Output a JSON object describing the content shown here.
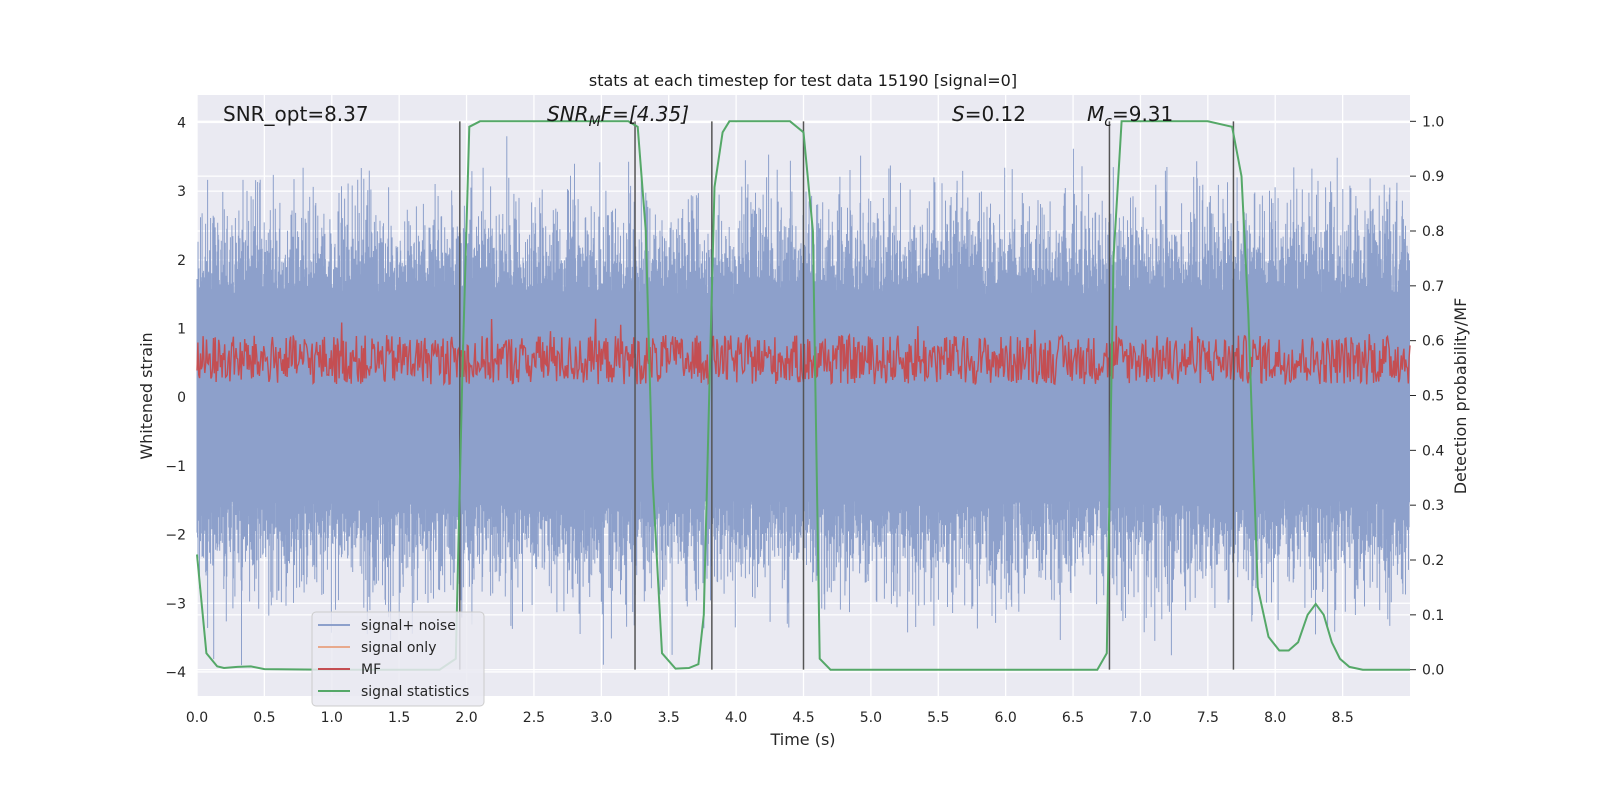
{
  "chart_data": {
    "type": "line",
    "title": "stats at each timestep for test data 15190 [signal=0]",
    "xlabel": "Time (s)",
    "ylabel_left": "Whitened strain",
    "ylabel_right": "Detection probability/MF",
    "xlim": [
      0.0,
      9.0
    ],
    "ylim_left": [
      -4.35,
      4.4
    ],
    "ylim_right": [
      -0.048,
      1.048
    ],
    "x_ticks": [
      "0.0",
      "0.5",
      "1.0",
      "1.5",
      "2.0",
      "2.5",
      "3.0",
      "3.5",
      "4.0",
      "4.5",
      "5.0",
      "5.5",
      "6.0",
      "6.5",
      "7.0",
      "7.5",
      "8.0",
      "8.5"
    ],
    "y_ticks_left": [
      "4",
      "3",
      "2",
      "1",
      "0",
      "−1",
      "−2",
      "−3",
      "−4"
    ],
    "y_ticks_right": [
      "1.0",
      "0.9",
      "0.8",
      "0.7",
      "0.6",
      "0.5",
      "0.4",
      "0.3",
      "0.2",
      "0.1",
      "0.0"
    ],
    "grid": true,
    "legend_position": "lower-left",
    "annotations": {
      "snr_opt": "SNR_opt=8.37",
      "snr_mf_prefix": "SNR",
      "snr_mf_sub": "M",
      "snr_mf_rest": "F=[4.35]",
      "s_var": "S",
      "s_val": "=0.12",
      "mc_var": "M",
      "mc_sub": "c",
      "mc_val": "=9.31"
    },
    "vertical_lines": [
      1.95,
      3.25,
      3.82,
      4.5,
      6.77,
      7.69
    ],
    "series": [
      {
        "name": "signal+ noise",
        "color": "#8da0cb",
        "envelope": "noise with amplitude about ±2.5, peaks to ±3.8"
      },
      {
        "name": "signal only",
        "color": "#e8a98c",
        "values": []
      },
      {
        "name": "MF",
        "color": "#c44e52",
        "band_right_axis": [
          0.5,
          0.62
        ]
      },
      {
        "name": "signal statistics",
        "color": "#55a868",
        "x": [
          0.0,
          0.07,
          0.15,
          0.2,
          0.3,
          0.4,
          0.5,
          1.0,
          1.5,
          1.8,
          1.92,
          1.97,
          2.02,
          2.1,
          2.5,
          3.0,
          3.2,
          3.27,
          3.33,
          3.38,
          3.45,
          3.55,
          3.65,
          3.72,
          3.76,
          3.8,
          3.84,
          3.9,
          3.95,
          4.0,
          4.4,
          4.5,
          4.57,
          4.62,
          4.7,
          5.0,
          5.5,
          6.0,
          6.5,
          6.68,
          6.75,
          6.8,
          6.86,
          6.95,
          7.5,
          7.68,
          7.75,
          7.8,
          7.87,
          7.95,
          8.03,
          8.1,
          8.17,
          8.24,
          8.3,
          8.36,
          8.42,
          8.48,
          8.55,
          8.65,
          8.8,
          9.0
        ],
        "values": [
          0.21,
          0.03,
          0.006,
          0.003,
          0.005,
          0.006,
          0.001,
          0.0,
          0.0,
          0.0,
          0.02,
          0.55,
          0.99,
          1.0,
          1.0,
          1.0,
          1.0,
          0.99,
          0.8,
          0.35,
          0.03,
          0.002,
          0.003,
          0.01,
          0.1,
          0.5,
          0.88,
          0.98,
          1.0,
          1.0,
          1.0,
          0.98,
          0.8,
          0.02,
          0.0,
          0.0,
          0.0,
          0.0,
          0.0,
          0.0,
          0.03,
          0.75,
          1.0,
          1.0,
          1.0,
          0.99,
          0.9,
          0.65,
          0.15,
          0.06,
          0.035,
          0.035,
          0.05,
          0.1,
          0.12,
          0.1,
          0.05,
          0.02,
          0.005,
          0.0,
          0.0,
          0.0
        ]
      }
    ]
  }
}
